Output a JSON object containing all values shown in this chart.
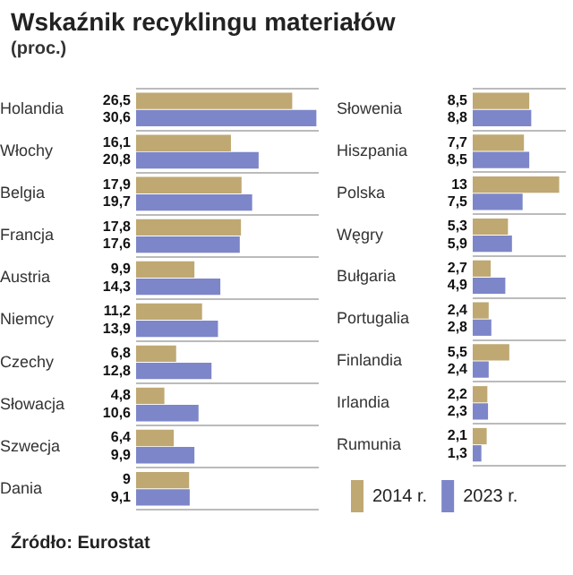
{
  "chart_data": [
    {
      "type": "bar",
      "orientation": "horizontal",
      "title": "Wskaźnik recyklingu materiałów",
      "subtitle": "(proc.)",
      "categories": [
        "Holandia",
        "Włochy",
        "Belgia",
        "Francja",
        "Austria",
        "Niemcy",
        "Czechy",
        "Słowacja",
        "Szwecja",
        "Dania"
      ],
      "series": [
        {
          "color": "#bfa872",
          "values": [
            26.5,
            16.1,
            17.9,
            17.8,
            9.9,
            11.2,
            6.8,
            4.8,
            6.4,
            9
          ],
          "value_labels": [
            "26,5",
            "16,1",
            "17,9",
            "17,8",
            "9,9",
            "11,2",
            "6,8",
            "4,8",
            "6,4",
            "9"
          ]
        },
        {
          "color": "#7d86c8",
          "values": [
            30.6,
            20.8,
            19.7,
            17.6,
            14.3,
            13.9,
            12.8,
            10.6,
            9.9,
            9.1
          ],
          "value_labels": [
            "30,6",
            "20,8",
            "19,7",
            "17,6",
            "14,3",
            "13,9",
            "12,8",
            "10,6",
            "9,9",
            "9,1"
          ]
        }
      ],
      "xlim": [
        0,
        31
      ],
      "grid": "y",
      "legend": false,
      "tick_labels": "y",
      "annotations": [
        "Źródło: Eurostat"
      ]
    },
    {
      "type": "bar",
      "orientation": "horizontal",
      "categories": [
        "Słowenia",
        "Hiszpania",
        "Polska",
        "Węgry",
        "Bułgaria",
        "Portugalia",
        "Finlandia",
        "Irlandia",
        "Rumunia"
      ],
      "series": [
        {
          "name": "2014 r.",
          "color": "#bfa872",
          "values": [
            8.5,
            7.7,
            13,
            5.3,
            2.7,
            2.4,
            5.5,
            2.2,
            2.1
          ],
          "value_labels": [
            "8,5",
            "7,7",
            "13",
            "5,3",
            "2,7",
            "2,4",
            "5,5",
            "2,2",
            "2,1"
          ]
        },
        {
          "name": "2023 r.",
          "color": "#7d86c8",
          "values": [
            8.8,
            8.5,
            7.5,
            5.9,
            4.9,
            2.8,
            2.4,
            2.3,
            1.3
          ],
          "value_labels": [
            "8,8",
            "8,5",
            "7,5",
            "5,9",
            "4,9",
            "2,8",
            "2,4",
            "2,3",
            "1,3"
          ]
        }
      ],
      "xlim": [
        0,
        14
      ],
      "grid": "y",
      "legend": "bottom",
      "tick_labels": "y"
    }
  ]
}
